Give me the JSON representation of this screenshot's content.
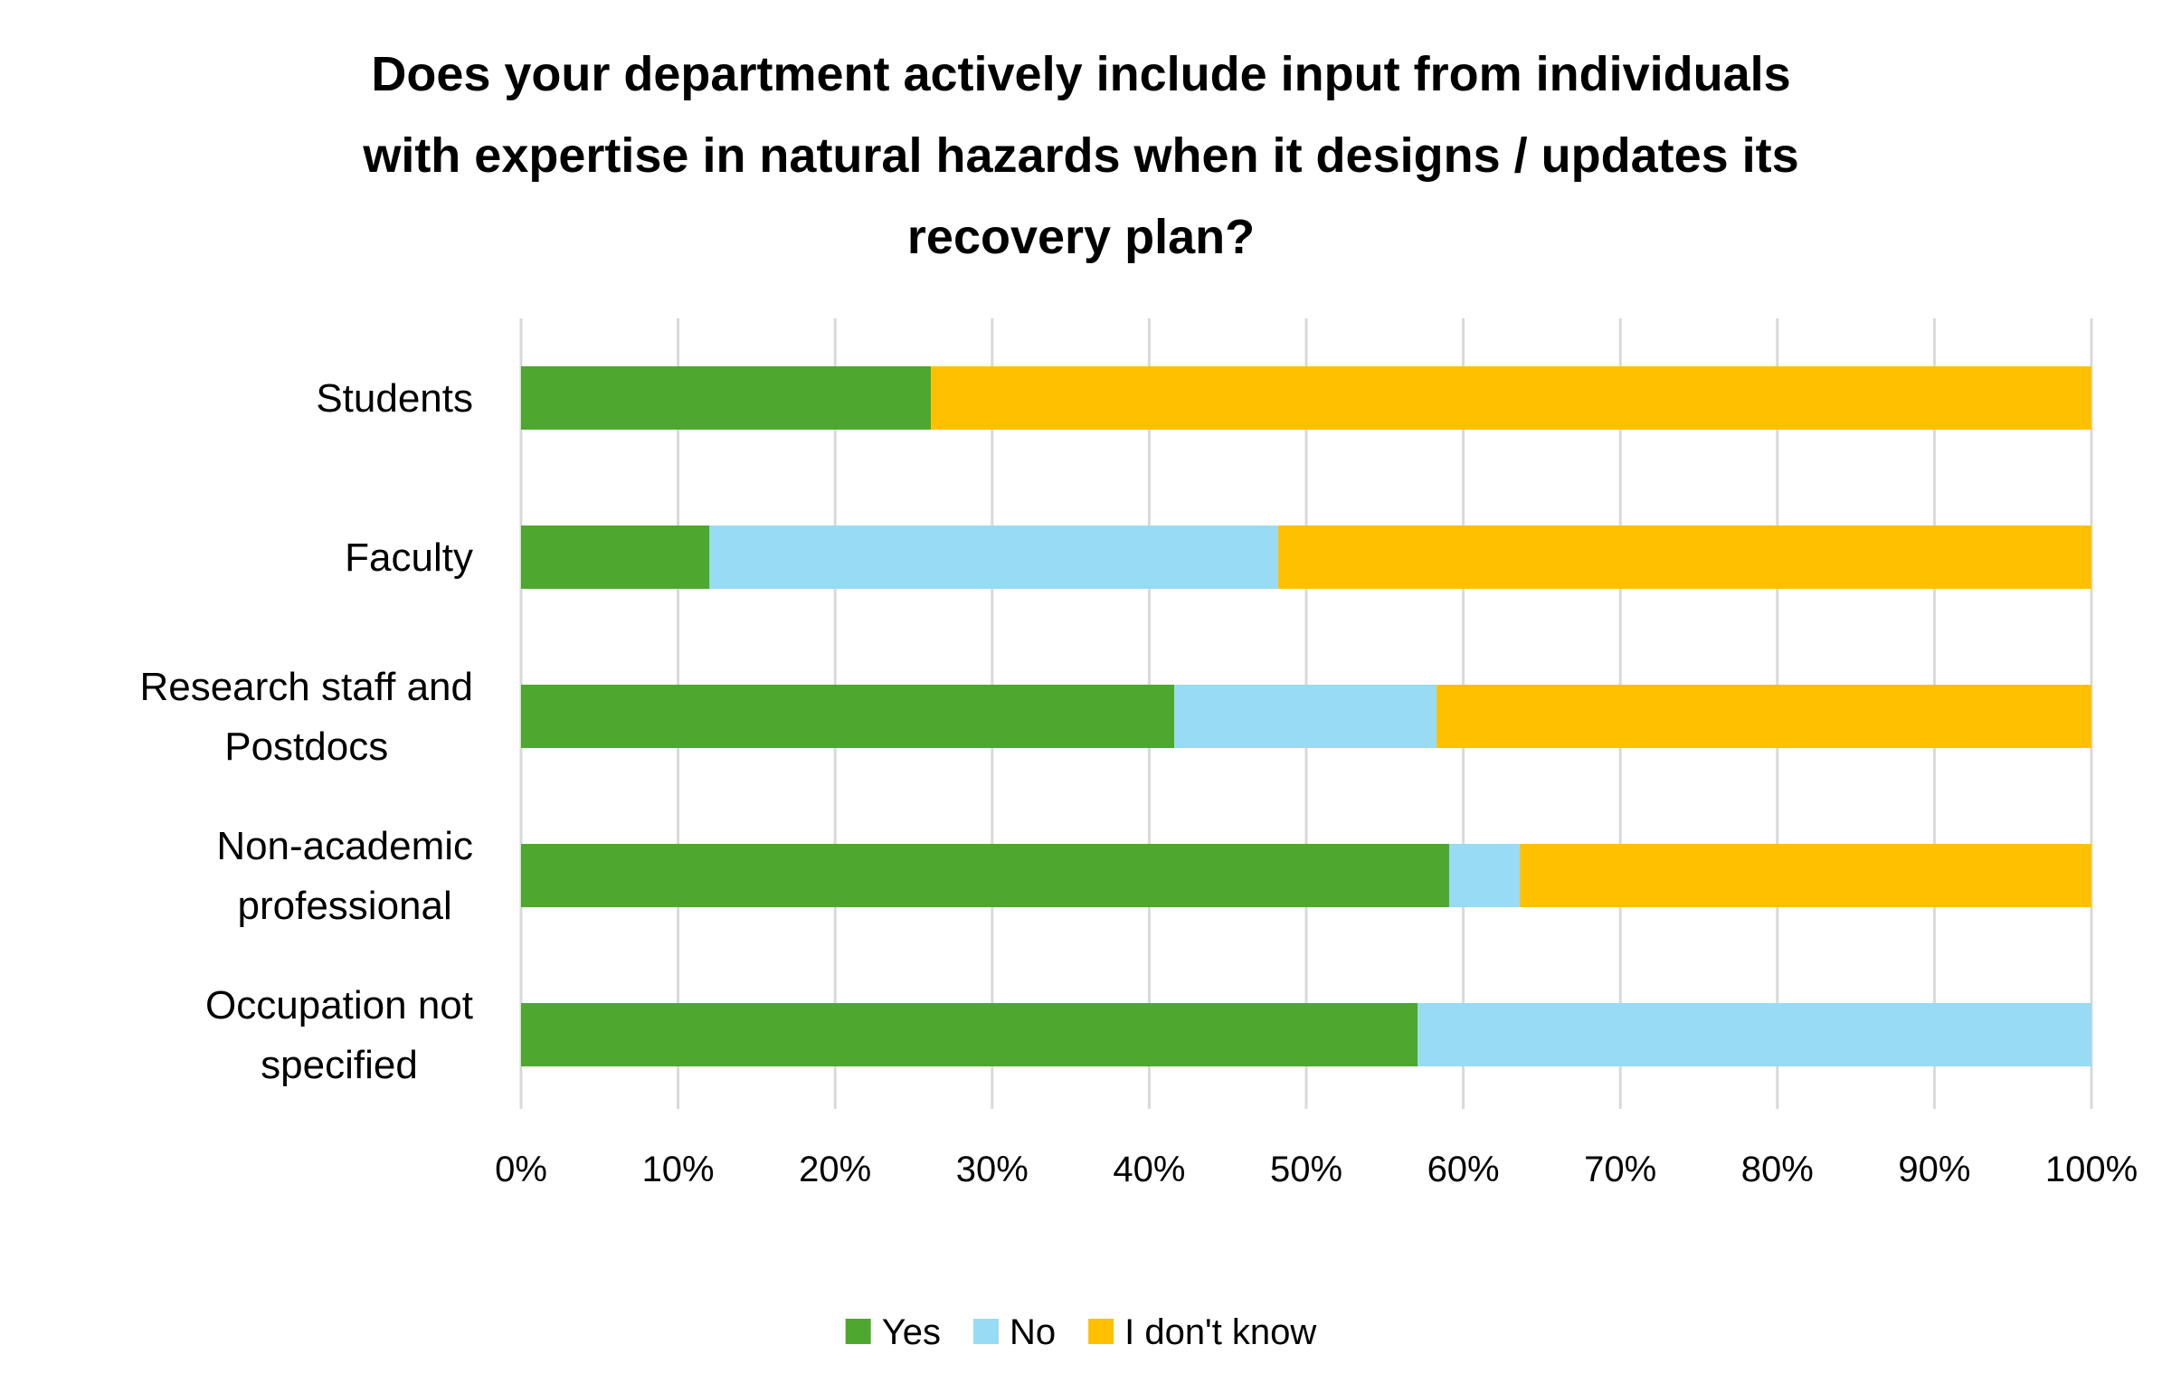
{
  "chart_data": {
    "type": "bar",
    "orientation": "horizontal",
    "stacked": "percent",
    "title_lines": [
      "Does your department actively include input from individuals",
      "with expertise in natural hazards when it designs / updates its",
      "recovery plan?"
    ],
    "categories": [
      [
        "Students"
      ],
      [
        "Faculty"
      ],
      [
        "Research staff and",
        "Postdocs"
      ],
      [
        "Non-academic",
        "professional"
      ],
      [
        "Occupation not",
        "specified"
      ]
    ],
    "series": [
      {
        "name": "Yes",
        "color": "#4EA72E",
        "values": [
          26.1,
          12.0,
          41.6,
          59.1,
          57.1
        ]
      },
      {
        "name": "No",
        "color": "#97DBF5",
        "values": [
          0,
          36.2,
          16.7,
          4.5,
          42.9
        ]
      },
      {
        "name": "I don't know",
        "color": "#FFC000",
        "values": [
          73.9,
          51.8,
          41.7,
          36.4,
          0
        ]
      }
    ],
    "x_ticks": [
      "0%",
      "10%",
      "20%",
      "30%",
      "40%",
      "50%",
      "60%",
      "70%",
      "80%",
      "90%",
      "100%"
    ],
    "xlim": [
      0,
      100
    ],
    "grid": true,
    "legend_position": "bottom"
  }
}
